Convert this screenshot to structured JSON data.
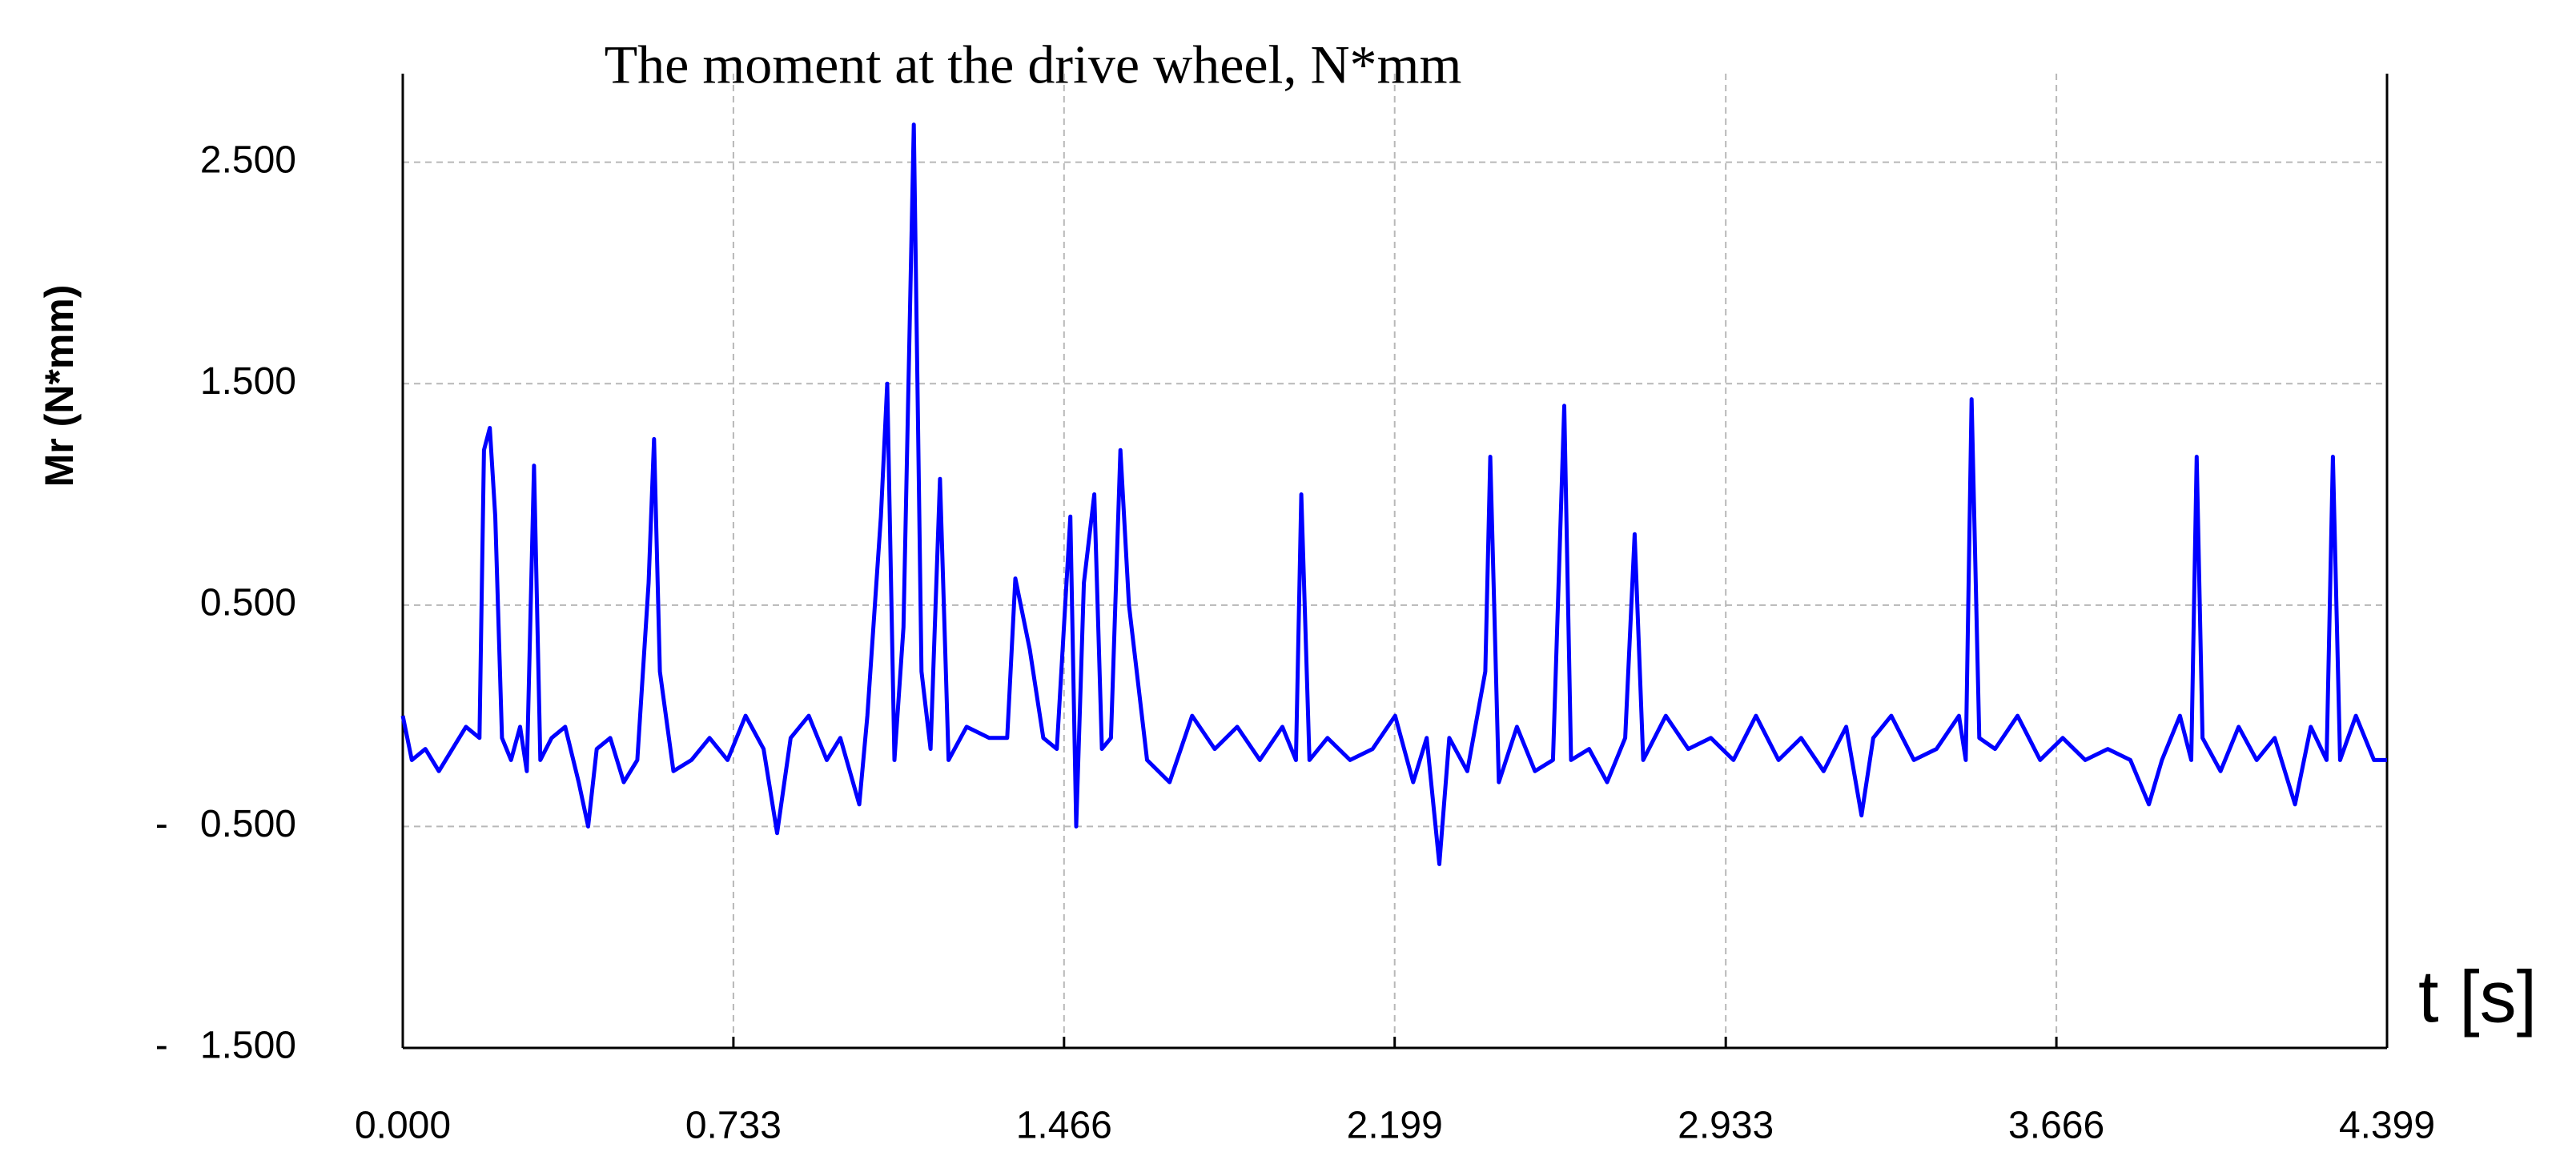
{
  "chart_data": {
    "type": "line",
    "title": "The moment at the drive wheel, N*mm",
    "y_label": "Mr (N*mm)",
    "x_label": "t [s]",
    "x": [
      0,
      0.02,
      0.05,
      0.08,
      0.11,
      0.14,
      0.17,
      0.18,
      0.193,
      0.205,
      0.22,
      0.24,
      0.26,
      0.275,
      0.291,
      0.305,
      0.33,
      0.36,
      0.39,
      0.411,
      0.43,
      0.46,
      0.49,
      0.52,
      0.545,
      0.557,
      0.57,
      0.6,
      0.64,
      0.68,
      0.72,
      0.76,
      0.8,
      0.83,
      0.86,
      0.9,
      0.94,
      0.97,
      1.012,
      1.03,
      1.06,
      1.074,
      1.09,
      1.11,
      1.133,
      1.15,
      1.17,
      1.191,
      1.21,
      1.25,
      1.3,
      1.34,
      1.358,
      1.39,
      1.42,
      1.45,
      1.48,
      1.493,
      1.51,
      1.533,
      1.55,
      1.57,
      1.591,
      1.61,
      1.65,
      1.7,
      1.75,
      1.8,
      1.85,
      1.9,
      1.95,
      1.98,
      1.992,
      2.01,
      2.05,
      2.1,
      2.15,
      2.2,
      2.24,
      2.27,
      2.298,
      2.32,
      2.36,
      2.4,
      2.411,
      2.43,
      2.47,
      2.51,
      2.55,
      2.575,
      2.59,
      2.63,
      2.67,
      2.71,
      2.731,
      2.75,
      2.8,
      2.85,
      2.9,
      2.95,
      3.0,
      3.05,
      3.1,
      3.15,
      3.2,
      3.234,
      3.26,
      3.3,
      3.35,
      3.4,
      3.45,
      3.465,
      3.478,
      3.495,
      3.53,
      3.58,
      3.63,
      3.68,
      3.73,
      3.78,
      3.83,
      3.871,
      3.9,
      3.94,
      3.965,
      3.977,
      3.99,
      4.03,
      4.07,
      4.11,
      4.15,
      4.195,
      4.23,
      4.265,
      4.279,
      4.295,
      4.33,
      4.37,
      4.399
    ],
    "series": [
      {
        "color": "#0000ff",
        "values": [
          0.0,
          -0.2,
          -0.15,
          -0.25,
          -0.15,
          -0.05,
          -0.1,
          1.2,
          1.3,
          0.9,
          -0.1,
          -0.2,
          -0.05,
          -0.25,
          1.13,
          -0.2,
          -0.1,
          -0.05,
          -0.3,
          -0.5,
          -0.15,
          -0.1,
          -0.3,
          -0.2,
          0.6,
          1.25,
          0.2,
          -0.25,
          -0.2,
          -0.1,
          -0.2,
          0.0,
          -0.15,
          -0.53,
          -0.1,
          0.0,
          -0.2,
          -0.1,
          -0.4,
          0.0,
          0.9,
          1.5,
          -0.2,
          0.4,
          2.67,
          0.2,
          -0.15,
          1.07,
          -0.2,
          -0.05,
          -0.1,
          -0.1,
          0.62,
          0.3,
          -0.1,
          -0.15,
          0.9,
          -0.5,
          0.6,
          1.0,
          -0.15,
          -0.1,
          1.2,
          0.5,
          -0.2,
          -0.3,
          0.0,
          -0.15,
          -0.05,
          -0.2,
          -0.05,
          -0.2,
          1.0,
          -0.2,
          -0.1,
          -0.2,
          -0.15,
          0.0,
          -0.3,
          -0.1,
          -0.67,
          -0.1,
          -0.25,
          0.2,
          1.17,
          -0.3,
          -0.05,
          -0.25,
          -0.2,
          1.4,
          -0.2,
          -0.15,
          -0.3,
          -0.1,
          0.82,
          -0.2,
          0.0,
          -0.15,
          -0.1,
          -0.2,
          0.0,
          -0.2,
          -0.1,
          -0.25,
          -0.05,
          -0.45,
          -0.1,
          0.0,
          -0.2,
          -0.15,
          0.0,
          -0.2,
          1.43,
          -0.1,
          -0.15,
          0.0,
          -0.2,
          -0.1,
          -0.2,
          -0.15,
          -0.2,
          -0.4,
          -0.2,
          0.0,
          -0.2,
          1.17,
          -0.1,
          -0.25,
          -0.05,
          -0.2,
          -0.1,
          -0.4,
          -0.05,
          -0.2,
          1.17,
          -0.2,
          0.0,
          -0.2,
          -0.2
        ]
      }
    ],
    "xlim": [
      0,
      4.399
    ],
    "ylim": [
      -1.5,
      2.9
    ],
    "xticks": [
      {
        "value": 0,
        "label": "0.000"
      },
      {
        "value": 0.733,
        "label": "0.733"
      },
      {
        "value": 1.466,
        "label": "1.466"
      },
      {
        "value": 2.199,
        "label": "2.199"
      },
      {
        "value": 2.933,
        "label": "2.933"
      },
      {
        "value": 3.666,
        "label": "3.666"
      },
      {
        "value": 4.399,
        "label": "4.399"
      }
    ],
    "yticks": [
      {
        "value": -1.5,
        "label": "-   1.500"
      },
      {
        "value": -0.5,
        "label": "-   0.500"
      },
      {
        "value": 0.5,
        "label": "0.500"
      },
      {
        "value": 1.5,
        "label": "1.500"
      },
      {
        "value": 2.5,
        "label": "2.500"
      }
    ],
    "grid": true
  }
}
